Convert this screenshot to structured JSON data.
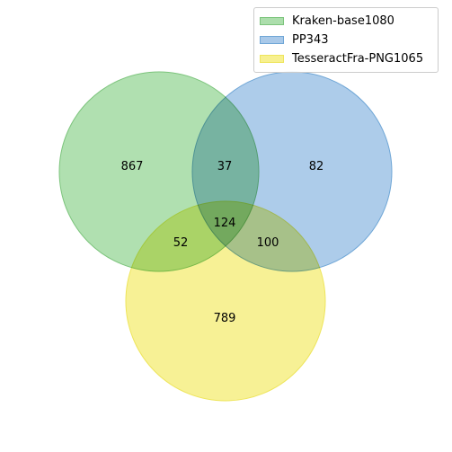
{
  "sets": [
    {
      "name": "Kraken-base1080",
      "color": "#2ca02c",
      "fill": "#acdeac",
      "edge": "#7cc47c"
    },
    {
      "name": "PP343",
      "color": "#1f77b4",
      "fill": "#a9c9e9",
      "edge": "#6fa6d6"
    },
    {
      "name": "TesseractFra-PNG1065",
      "color": "#e8e000",
      "fill": "#f7f08f",
      "edge": "#eee55c"
    }
  ],
  "regions": {
    "a_only": "867",
    "b_only": "82",
    "c_only": "789",
    "ab": "37",
    "ac": "52",
    "bc": "100",
    "abc": "124"
  },
  "legend": {
    "position": "upper right",
    "items": [
      "Kraken-base1080",
      "PP343",
      "TesseractFra-PNG1065"
    ]
  }
}
